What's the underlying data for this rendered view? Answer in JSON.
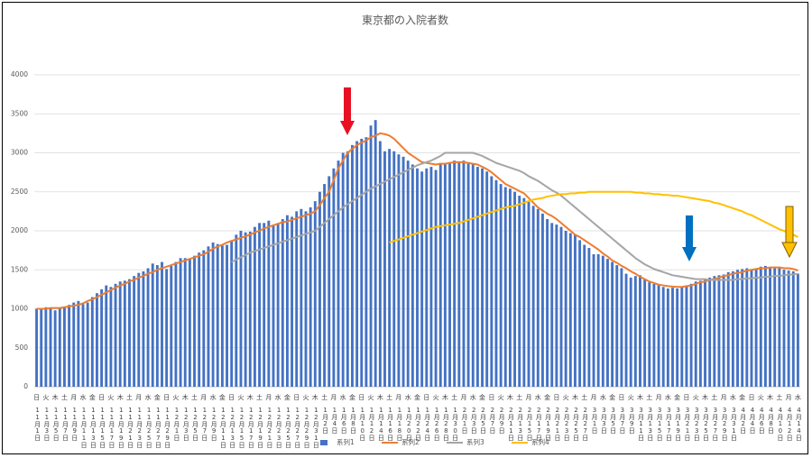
{
  "chart_data": {
    "type": "bar",
    "title": "東京都の入院者数",
    "ylim": [
      0,
      4000
    ],
    "yticks": [
      0,
      500,
      1000,
      1500,
      2000,
      2500,
      3000,
      3500,
      4000
    ],
    "grid": true,
    "legend": "bottom",
    "categories": [
      "11月1日",
      null,
      "11月3日",
      null,
      "11月5日",
      null,
      "11月7日",
      null,
      "11月9日",
      null,
      "11月11日",
      null,
      "11月13日",
      null,
      "11月15日",
      null,
      "11月17日",
      null,
      "11月19日",
      null,
      "11月21日",
      null,
      "11月23日",
      null,
      "11月25日",
      null,
      "11月27日",
      null,
      "11月29日",
      null,
      "12月1日",
      null,
      "12月3日",
      null,
      "12月5日",
      null,
      "12月7日",
      null,
      "12月9日",
      null,
      "12月11日",
      null,
      "12月13日",
      null,
      "12月15日",
      null,
      "12月17日",
      null,
      "12月19日",
      null,
      "12月21日",
      null,
      "12月23日",
      null,
      "12月25日",
      null,
      "12月27日",
      null,
      "12月29日",
      null,
      "12月31日",
      null,
      "1月2日",
      null,
      "1月4日",
      null,
      "1月6日",
      null,
      "1月8日",
      null,
      "1月10日",
      null,
      "1月12日",
      null,
      "1月14日",
      null,
      "1月16日",
      null,
      "1月18日",
      null,
      "1月20日",
      null,
      "1月22日",
      null,
      "1月24日",
      null,
      "1月26日",
      null,
      "1月28日",
      null,
      "1月30日",
      null,
      "2月1日",
      null,
      "2月3日",
      null,
      "2月5日",
      null,
      "2月7日",
      null,
      "2月9日",
      null,
      "2月11日",
      null,
      "2月13日",
      null,
      "2月15日",
      null,
      "2月17日",
      null,
      "2月19日",
      null,
      "2月21日",
      null,
      "2月23日",
      null,
      "2月25日",
      null,
      "2月27日",
      null,
      "3月1日",
      null,
      "3月3日",
      null,
      "3月5日",
      null,
      "3月7日",
      null,
      "3月9日",
      null,
      "3月11日",
      null,
      "3月13日",
      null,
      "3月15日",
      null,
      "3月17日",
      null,
      "3月19日",
      null,
      "3月21日",
      null,
      "3月23日",
      null,
      "3月25日",
      null,
      "3月27日",
      null,
      "3月29日",
      null,
      "3月31日",
      null,
      "4月2日",
      null,
      "4月4日",
      null,
      "4月6日",
      null,
      "4月8日",
      null,
      "4月10日",
      null,
      "4月12日",
      null,
      "4月14日"
    ],
    "weekdays": [
      "日",
      null,
      "火",
      null,
      "木",
      null,
      "土",
      null,
      "月",
      null,
      "水",
      null,
      "金",
      null,
      "日",
      null,
      "火",
      null,
      "木",
      null,
      "土",
      null,
      "月",
      null,
      "水",
      null,
      "金",
      null,
      "日",
      null,
      "火",
      null,
      "木",
      null,
      "土",
      null,
      "月",
      null,
      "水",
      null,
      "金",
      null,
      "日",
      null,
      "火",
      null,
      "木",
      null,
      "土",
      null,
      "月",
      null,
      "水",
      null,
      "金",
      null,
      "日",
      null,
      "火",
      null,
      "木",
      null,
      "土",
      null,
      "月",
      null,
      "水",
      null,
      "金",
      null,
      "日",
      null,
      "火",
      null,
      "木",
      null,
      "土",
      null,
      "月",
      null,
      "水",
      null,
      "金",
      null,
      "日",
      null,
      "火",
      null,
      "木",
      null,
      "土",
      null,
      "月",
      null,
      "水",
      null,
      "金",
      null,
      "日",
      null,
      "火",
      null,
      "木",
      null,
      "土",
      null,
      "月",
      null,
      "水",
      null,
      "金",
      null,
      "日",
      null,
      "火",
      null,
      "木",
      null,
      "土",
      null,
      "月",
      null,
      "水",
      null,
      "金",
      null,
      "日",
      null,
      "火",
      null,
      "木",
      null,
      "土",
      null,
      "月",
      null,
      "水",
      null,
      "金",
      null,
      "日",
      null,
      "火",
      null,
      "木",
      null,
      "土",
      null,
      "月",
      null,
      "水",
      null,
      "金",
      null,
      "日",
      null,
      "火",
      null,
      "木",
      null,
      "土",
      null,
      "月",
      null,
      "水"
    ],
    "series": [
      {
        "name": "系列1",
        "type": "bar",
        "color": "#4472c4",
        "values": [
          1000,
          1010,
          1020,
          1000,
          980,
          1000,
          1020,
          1050,
          1080,
          1100,
          1060,
          1080,
          1150,
          1200,
          1250,
          1300,
          1280,
          1320,
          1350,
          1360,
          1380,
          1420,
          1460,
          1480,
          1520,
          1580,
          1560,
          1600,
          1510,
          1550,
          1600,
          1650,
          1650,
          1640,
          1680,
          1720,
          1750,
          1800,
          1850,
          1830,
          1810,
          1820,
          1880,
          1950,
          2000,
          1980,
          1990,
          2050,
          2100,
          2100,
          2130,
          2080,
          2100,
          2150,
          2200,
          2180,
          2250,
          2280,
          2250,
          2300,
          2380,
          2500,
          2600,
          2700,
          2800,
          2900,
          3000,
          3020,
          3100,
          3150,
          3180,
          3200,
          3350,
          3420,
          3150,
          3020,
          3050,
          3020,
          2980,
          2950,
          2900,
          2850,
          2800,
          2760,
          2800,
          2820,
          2780,
          2850,
          2870,
          2880,
          2900,
          2880,
          2900,
          2880,
          2850,
          2820,
          2800,
          2760,
          2700,
          2650,
          2600,
          2560,
          2540,
          2500,
          2450,
          2420,
          2380,
          2320,
          2280,
          2220,
          2150,
          2100,
          2080,
          2050,
          2000,
          1970,
          1950,
          1880,
          1820,
          1780,
          1700,
          1700,
          1680,
          1640,
          1600,
          1560,
          1520,
          1450,
          1400,
          1420,
          1430,
          1380,
          1340,
          1320,
          1300,
          1280,
          1260,
          1270,
          1260,
          1280,
          1300,
          1320,
          1350,
          1360,
          1380,
          1400,
          1420,
          1430,
          1440,
          1470,
          1480,
          1500,
          1510,
          1520,
          1500,
          1520,
          1540,
          1550,
          1530,
          1520,
          1520,
          1500,
          1490,
          1480,
          1450
        ]
      },
      {
        "name": "系列2",
        "type": "line",
        "color": "#ed7d31",
        "values": [
          1000,
          1000,
          1000,
          1010,
          1010,
          1010,
          1020,
          1030,
          1040,
          1050,
          1070,
          1100,
          1120,
          1150,
          1180,
          1210,
          1240,
          1270,
          1300,
          1320,
          1350,
          1370,
          1400,
          1420,
          1450,
          1470,
          1500,
          1520,
          1540,
          1560,
          1580,
          1600,
          1620,
          1640,
          1660,
          1680,
          1700,
          1730,
          1770,
          1800,
          1820,
          1850,
          1870,
          1890,
          1910,
          1930,
          1950,
          1980,
          2000,
          2030,
          2050,
          2070,
          2090,
          2110,
          2120,
          2140,
          2160,
          2180,
          2200,
          2220,
          2250,
          2330,
          2420,
          2500,
          2650,
          2800,
          2900,
          3000,
          3050,
          3100,
          3130,
          3160,
          3200,
          3220,
          3250,
          3240,
          3220,
          3180,
          3120,
          3060,
          3000,
          2960,
          2920,
          2880,
          2870,
          2860,
          2850,
          2860,
          2860,
          2870,
          2880,
          2880,
          2880,
          2870,
          2860,
          2850,
          2820,
          2790,
          2750,
          2700,
          2650,
          2600,
          2570,
          2540,
          2510,
          2480,
          2420,
          2360,
          2300,
          2260,
          2220,
          2190,
          2150,
          2100,
          2050,
          2000,
          1950,
          1920,
          1880,
          1840,
          1800,
          1760,
          1710,
          1670,
          1620,
          1590,
          1550,
          1520,
          1480,
          1450,
          1410,
          1380,
          1350,
          1330,
          1310,
          1300,
          1290,
          1285,
          1280,
          1280,
          1290,
          1300,
          1320,
          1340,
          1350,
          1370,
          1380,
          1400,
          1420,
          1430,
          1450,
          1460,
          1470,
          1490,
          1500,
          1510,
          1520,
          1520,
          1530,
          1530,
          1530,
          1520,
          1520,
          1510,
          1490
        ]
      },
      {
        "name": "系列3",
        "type": "line",
        "color": "#a5a5a5",
        "values": [
          null,
          null,
          null,
          null,
          null,
          null,
          null,
          null,
          null,
          null,
          null,
          null,
          null,
          null,
          null,
          null,
          null,
          null,
          null,
          null,
          null,
          null,
          null,
          null,
          null,
          null,
          null,
          null,
          null,
          null,
          null,
          null,
          null,
          null,
          null,
          null,
          null,
          null,
          null,
          null,
          null,
          null,
          1600,
          1630,
          1660,
          1690,
          1720,
          1740,
          1760,
          1780,
          1800,
          1820,
          1840,
          1860,
          1880,
          1900,
          1920,
          1940,
          1960,
          1980,
          2000,
          2050,
          2100,
          2150,
          2200,
          2250,
          2300,
          2340,
          2380,
          2420,
          2460,
          2500,
          2540,
          2570,
          2600,
          2630,
          2660,
          2690,
          2720,
          2750,
          2780,
          2810,
          2840,
          2860,
          2880,
          2900,
          2930,
          2960,
          3000,
          3000,
          3000,
          3000,
          3000,
          3000,
          3000,
          2980,
          2960,
          2930,
          2900,
          2870,
          2850,
          2830,
          2810,
          2790,
          2770,
          2740,
          2700,
          2670,
          2640,
          2600,
          2560,
          2520,
          2490,
          2450,
          2400,
          2350,
          2300,
          2250,
          2200,
          2150,
          2100,
          2050,
          2000,
          1950,
          1900,
          1850,
          1800,
          1750,
          1700,
          1650,
          1610,
          1570,
          1540,
          1510,
          1490,
          1470,
          1450,
          1430,
          1420,
          1410,
          1400,
          1390,
          1380,
          1380,
          1380,
          1370,
          1370,
          1370,
          1370,
          1370,
          1370,
          1380,
          1380,
          1390,
          1390,
          1400,
          1400,
          1410,
          1410,
          1420,
          1420,
          1430,
          1440,
          1440,
          1450
        ]
      },
      {
        "name": "系列4",
        "type": "line",
        "color": "#ffc000",
        "values": [
          null,
          null,
          null,
          null,
          null,
          null,
          null,
          null,
          null,
          null,
          null,
          null,
          null,
          null,
          null,
          null,
          null,
          null,
          null,
          null,
          null,
          null,
          null,
          null,
          null,
          null,
          null,
          null,
          null,
          null,
          null,
          null,
          null,
          null,
          null,
          null,
          null,
          null,
          null,
          null,
          null,
          null,
          null,
          null,
          null,
          null,
          null,
          null,
          null,
          null,
          null,
          null,
          null,
          null,
          null,
          null,
          null,
          null,
          null,
          null,
          null,
          null,
          null,
          null,
          null,
          null,
          null,
          null,
          null,
          null,
          null,
          null,
          null,
          null,
          null,
          null,
          1850,
          1870,
          1890,
          1910,
          1930,
          1950,
          1970,
          1990,
          2010,
          2030,
          2050,
          2060,
          2070,
          2080,
          2090,
          2100,
          2120,
          2140,
          2160,
          2180,
          2200,
          2220,
          2240,
          2260,
          2280,
          2300,
          2310,
          2320,
          2340,
          2360,
          2380,
          2400,
          2410,
          2420,
          2440,
          2450,
          2460,
          2470,
          2470,
          2480,
          2480,
          2490,
          2490,
          2500,
          2500,
          2500,
          2500,
          2500,
          2500,
          2500,
          2500,
          2500,
          2500,
          2490,
          2490,
          2480,
          2480,
          2470,
          2470,
          2460,
          2460,
          2450,
          2450,
          2440,
          2430,
          2420,
          2410,
          2400,
          2390,
          2380,
          2360,
          2350,
          2330,
          2310,
          2290,
          2270,
          2250,
          2220,
          2200,
          2170,
          2140,
          2110,
          2080,
          2050,
          2020,
          2000,
          1970,
          1950,
          1920
        ]
      }
    ]
  }
}
